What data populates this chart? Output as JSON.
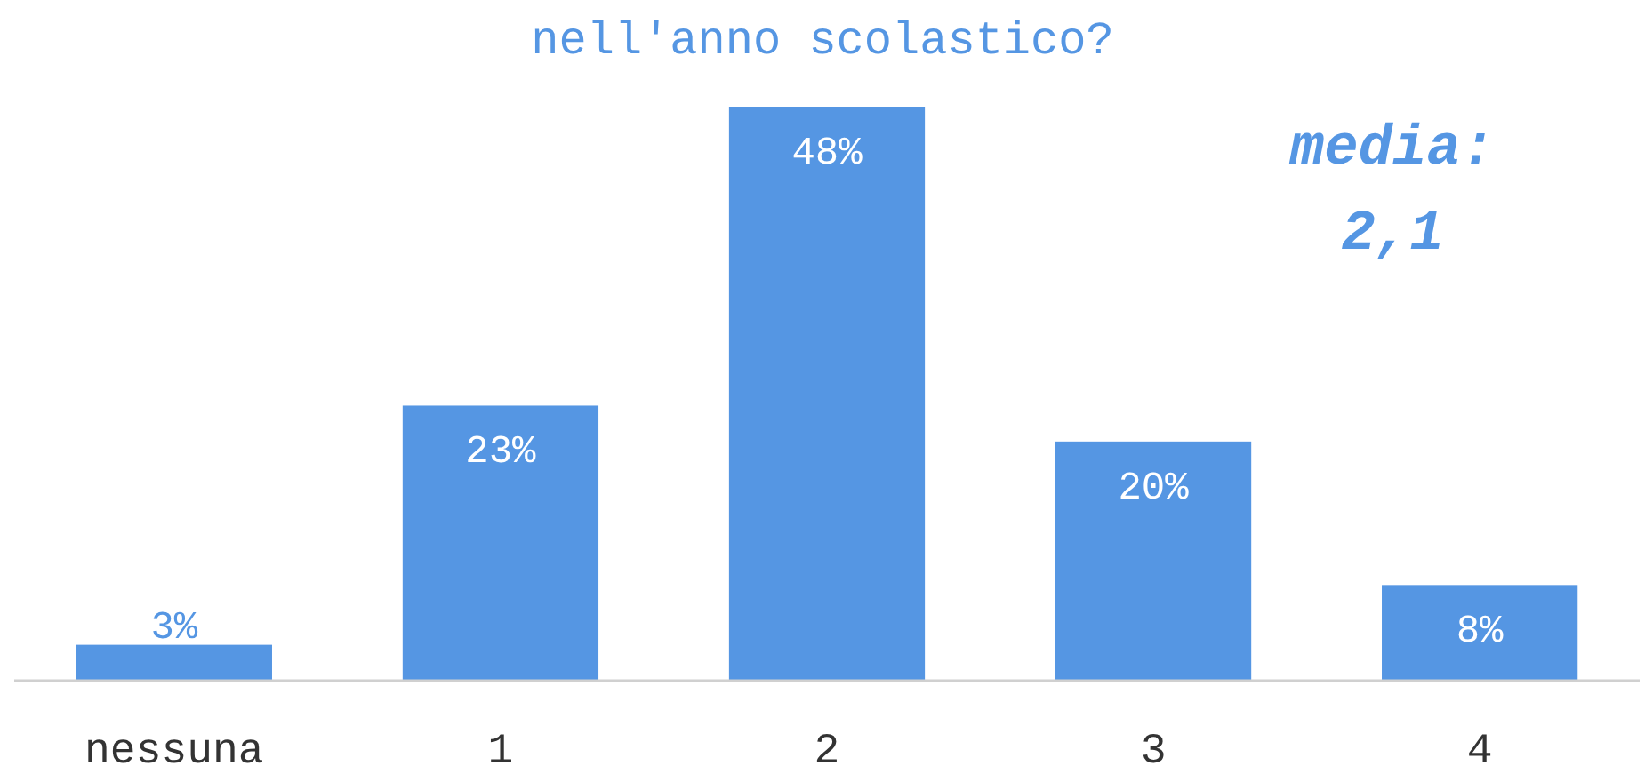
{
  "chart_data": {
    "type": "bar",
    "title": "nell'anno scolastico?",
    "categories": [
      "nessuna",
      "1",
      "2",
      "3",
      "4"
    ],
    "values": [
      3,
      23,
      48,
      20,
      8
    ],
    "value_labels": [
      "3%",
      "23%",
      "48%",
      "20%",
      "8%"
    ],
    "color": "#5596e3",
    "annotations": [
      "media:\n2,1"
    ]
  }
}
